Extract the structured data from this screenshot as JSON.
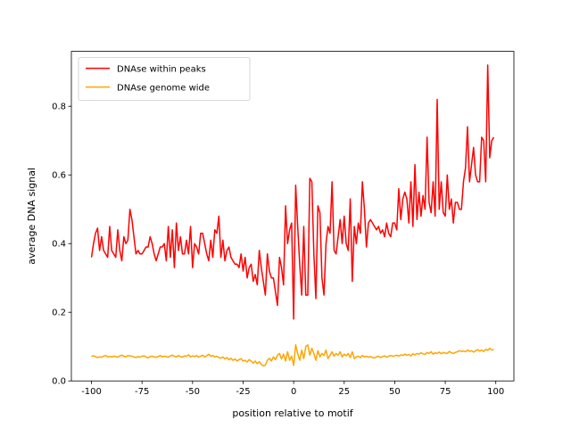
{
  "chart_data": {
    "type": "line",
    "xlabel": "position relative to motif",
    "ylabel": "average DNA signal",
    "x": [
      -100,
      -99,
      -98,
      -97,
      -96,
      -95,
      -94,
      -93,
      -92,
      -91,
      -90,
      -89,
      -88,
      -87,
      -86,
      -85,
      -84,
      -83,
      -82,
      -81,
      -80,
      -79,
      -78,
      -77,
      -76,
      -75,
      -74,
      -73,
      -72,
      -71,
      -70,
      -69,
      -68,
      -67,
      -66,
      -65,
      -64,
      -63,
      -62,
      -61,
      -60,
      -59,
      -58,
      -57,
      -56,
      -55,
      -54,
      -53,
      -52,
      -51,
      -50,
      -49,
      -48,
      -47,
      -46,
      -45,
      -44,
      -43,
      -42,
      -41,
      -40,
      -39,
      -38,
      -37,
      -36,
      -35,
      -34,
      -33,
      -32,
      -31,
      -30,
      -29,
      -28,
      -27,
      -26,
      -25,
      -24,
      -23,
      -22,
      -21,
      -20,
      -19,
      -18,
      -17,
      -16,
      -15,
      -14,
      -13,
      -12,
      -11,
      -10,
      -9,
      -8,
      -7,
      -6,
      -5,
      -4,
      -3,
      -2,
      -1,
      0,
      1,
      2,
      3,
      4,
      5,
      6,
      7,
      8,
      9,
      10,
      11,
      12,
      13,
      14,
      15,
      16,
      17,
      18,
      19,
      20,
      21,
      22,
      23,
      24,
      25,
      26,
      27,
      28,
      29,
      30,
      31,
      32,
      33,
      34,
      35,
      36,
      37,
      38,
      39,
      40,
      41,
      42,
      43,
      44,
      45,
      46,
      47,
      48,
      49,
      50,
      51,
      52,
      53,
      54,
      55,
      56,
      57,
      58,
      59,
      60,
      61,
      62,
      63,
      64,
      65,
      66,
      67,
      68,
      69,
      70,
      71,
      72,
      73,
      74,
      75,
      76,
      77,
      78,
      79,
      80,
      81,
      82,
      83,
      84,
      85,
      86,
      87,
      88,
      89,
      90,
      91,
      92,
      93,
      94,
      95,
      96,
      97,
      98,
      99
    ],
    "series": [
      {
        "name": "DNAse within peaks",
        "color": "#ff0000",
        "values": [
          0.36,
          0.4,
          0.43,
          0.445,
          0.38,
          0.42,
          0.38,
          0.37,
          0.36,
          0.45,
          0.38,
          0.37,
          0.36,
          0.44,
          0.38,
          0.35,
          0.42,
          0.4,
          0.41,
          0.5,
          0.47,
          0.42,
          0.37,
          0.38,
          0.37,
          0.37,
          0.38,
          0.39,
          0.39,
          0.42,
          0.4,
          0.37,
          0.35,
          0.37,
          0.39,
          0.39,
          0.4,
          0.35,
          0.45,
          0.36,
          0.44,
          0.33,
          0.46,
          0.38,
          0.42,
          0.37,
          0.37,
          0.41,
          0.37,
          0.45,
          0.33,
          0.4,
          0.39,
          0.37,
          0.43,
          0.43,
          0.4,
          0.37,
          0.35,
          0.41,
          0.36,
          0.44,
          0.43,
          0.48,
          0.36,
          0.41,
          0.35,
          0.38,
          0.39,
          0.36,
          0.35,
          0.34,
          0.34,
          0.33,
          0.37,
          0.32,
          0.36,
          0.3,
          0.33,
          0.34,
          0.29,
          0.31,
          0.28,
          0.38,
          0.33,
          0.29,
          0.25,
          0.37,
          0.32,
          0.3,
          0.3,
          0.26,
          0.22,
          0.36,
          0.33,
          0.28,
          0.51,
          0.4,
          0.44,
          0.46,
          0.18,
          0.57,
          0.45,
          0.34,
          0.25,
          0.45,
          0.25,
          0.25,
          0.59,
          0.58,
          0.37,
          0.24,
          0.51,
          0.49,
          0.3,
          0.25,
          0.4,
          0.45,
          0.43,
          0.58,
          0.38,
          0.37,
          0.42,
          0.47,
          0.4,
          0.48,
          0.4,
          0.38,
          0.53,
          0.29,
          0.45,
          0.4,
          0.46,
          0.43,
          0.58,
          0.5,
          0.39,
          0.46,
          0.47,
          0.46,
          0.45,
          0.44,
          0.45,
          0.43,
          0.44,
          0.42,
          0.46,
          0.43,
          0.42,
          0.46,
          0.46,
          0.44,
          0.56,
          0.47,
          0.53,
          0.55,
          0.53,
          0.46,
          0.58,
          0.45,
          0.63,
          0.47,
          0.55,
          0.48,
          0.54,
          0.5,
          0.71,
          0.52,
          0.49,
          0.58,
          0.48,
          0.82,
          0.5,
          0.58,
          0.49,
          0.48,
          0.6,
          0.5,
          0.53,
          0.46,
          0.52,
          0.52,
          0.5,
          0.5,
          0.58,
          0.62,
          0.74,
          0.58,
          0.63,
          0.68,
          0.6,
          0.58,
          0.58,
          0.71,
          0.7,
          0.58,
          0.92,
          0.65,
          0.7,
          0.71
        ]
      },
      {
        "name": "DNAse genome wide",
        "color": "#ffa500",
        "values": [
          0.072,
          0.073,
          0.071,
          0.068,
          0.07,
          0.069,
          0.072,
          0.074,
          0.07,
          0.071,
          0.07,
          0.072,
          0.071,
          0.069,
          0.073,
          0.075,
          0.072,
          0.07,
          0.074,
          0.073,
          0.072,
          0.07,
          0.068,
          0.071,
          0.069,
          0.072,
          0.073,
          0.07,
          0.067,
          0.071,
          0.072,
          0.07,
          0.069,
          0.071,
          0.074,
          0.07,
          0.072,
          0.071,
          0.069,
          0.073,
          0.075,
          0.072,
          0.07,
          0.074,
          0.071,
          0.069,
          0.073,
          0.072,
          0.076,
          0.07,
          0.073,
          0.071,
          0.074,
          0.069,
          0.072,
          0.075,
          0.07,
          0.073,
          0.078,
          0.072,
          0.074,
          0.07,
          0.072,
          0.068,
          0.066,
          0.07,
          0.064,
          0.068,
          0.062,
          0.066,
          0.06,
          0.064,
          0.058,
          0.062,
          0.065,
          0.058,
          0.06,
          0.055,
          0.062,
          0.058,
          0.052,
          0.058,
          0.05,
          0.056,
          0.048,
          0.044,
          0.046,
          0.06,
          0.066,
          0.058,
          0.07,
          0.062,
          0.075,
          0.08,
          0.064,
          0.078,
          0.058,
          0.085,
          0.06,
          0.072,
          0.045,
          0.105,
          0.08,
          0.06,
          0.09,
          0.065,
          0.1,
          0.105,
          0.075,
          0.095,
          0.08,
          0.06,
          0.088,
          0.07,
          0.08,
          0.074,
          0.09,
          0.065,
          0.075,
          0.085,
          0.072,
          0.08,
          0.075,
          0.085,
          0.07,
          0.078,
          0.073,
          0.08,
          0.068,
          0.085,
          0.065,
          0.07,
          0.072,
          0.068,
          0.074,
          0.07,
          0.072,
          0.069,
          0.071,
          0.068,
          0.067,
          0.07,
          0.072,
          0.068,
          0.071,
          0.073,
          0.069,
          0.072,
          0.074,
          0.072,
          0.073,
          0.075,
          0.072,
          0.076,
          0.074,
          0.078,
          0.075,
          0.077,
          0.073,
          0.079,
          0.076,
          0.08,
          0.078,
          0.082,
          0.079,
          0.077,
          0.083,
          0.08,
          0.085,
          0.078,
          0.082,
          0.08,
          0.084,
          0.079,
          0.083,
          0.081,
          0.08,
          0.086,
          0.082,
          0.08,
          0.083,
          0.085,
          0.088,
          0.086,
          0.087,
          0.085,
          0.09,
          0.086,
          0.088,
          0.084,
          0.088,
          0.091,
          0.087,
          0.09,
          0.086,
          0.092,
          0.089,
          0.095,
          0.09,
          0.091
        ]
      }
    ],
    "xlim": [
      -109.95,
      108.95
    ],
    "xticks": [
      -100,
      -75,
      -50,
      -25,
      0,
      25,
      50,
      75,
      100
    ],
    "ylim": [
      0.0,
      0.96
    ],
    "yticks": [
      {
        "value": 0,
        "label": "0.0"
      },
      0.2,
      0.4,
      0.6,
      0.8
    ],
    "legend": "upper left"
  }
}
